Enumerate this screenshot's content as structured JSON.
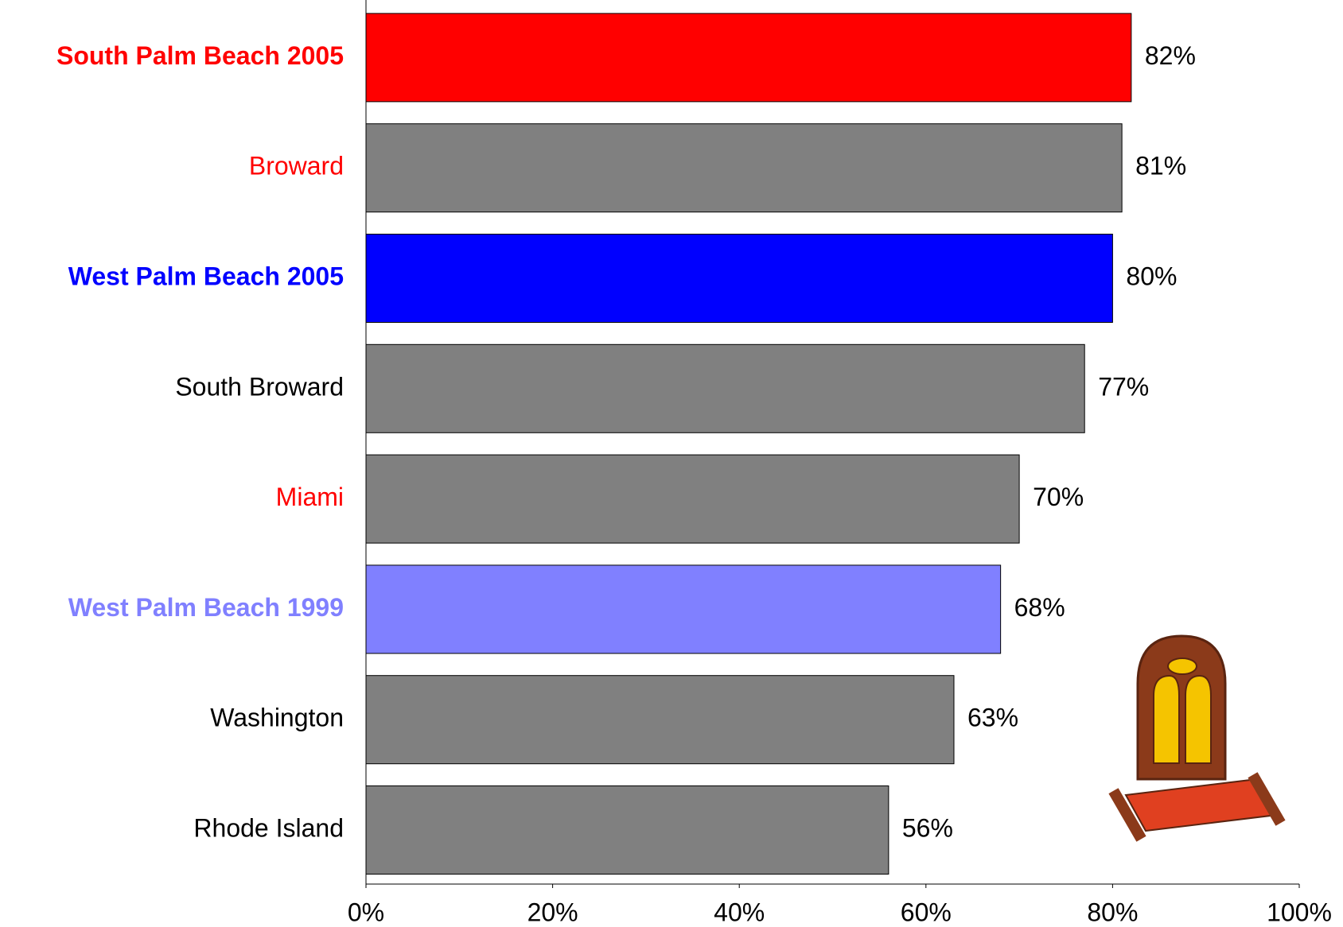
{
  "chart_data": {
    "type": "hbar",
    "categories": [
      "South Palm Beach 2005",
      "Broward",
      "West Palm Beach 2005",
      "South Broward",
      "Miami",
      "West Palm Beach 1999",
      "Washington",
      "Rhode Island"
    ],
    "values": [
      82,
      81,
      80,
      77,
      70,
      68,
      63,
      56
    ],
    "value_labels": [
      "82%",
      "81%",
      "80%",
      "77%",
      "70%",
      "68%",
      "63%",
      "56%"
    ],
    "colors": [
      "#ff0000",
      "#808080",
      "#0000ff",
      "#808080",
      "#808080",
      "#8080ff",
      "#808080",
      "#808080"
    ],
    "label_colors": [
      "#ff0000",
      "#ff0000",
      "#0000ff",
      "#000000",
      "#ff0000",
      "#8080ff",
      "#000000",
      "#000000"
    ],
    "label_bold": [
      true,
      false,
      true,
      false,
      false,
      true,
      false,
      false
    ],
    "xlim": [
      0,
      100
    ],
    "xticks": [
      {
        "value": 0,
        "label": "0%"
      },
      {
        "value": 20,
        "label": "20%"
      },
      {
        "value": 40,
        "label": "40%"
      },
      {
        "value": 60,
        "label": "60%"
      },
      {
        "value": 80,
        "label": "80%"
      },
      {
        "value": 100,
        "label": "100%"
      }
    ],
    "grid": false
  }
}
